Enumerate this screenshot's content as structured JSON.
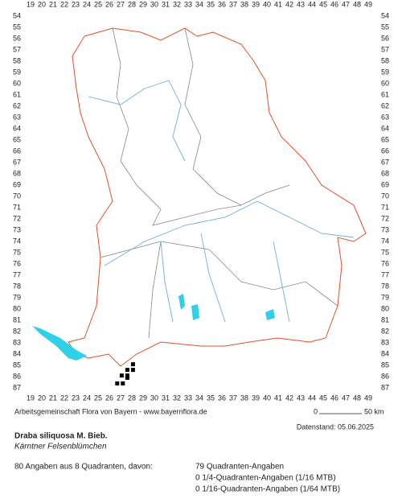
{
  "map": {
    "x_labels": [
      19,
      20,
      21,
      22,
      23,
      24,
      25,
      26,
      27,
      28,
      29,
      30,
      31,
      32,
      33,
      34,
      35,
      36,
      37,
      38,
      39,
      40,
      41,
      42,
      43,
      44,
      45,
      46,
      47,
      48,
      49
    ],
    "y_labels": [
      54,
      55,
      56,
      57,
      58,
      59,
      60,
      61,
      62,
      63,
      64,
      65,
      66,
      67,
      68,
      69,
      70,
      71,
      72,
      73,
      74,
      75,
      76,
      77,
      78,
      79,
      80,
      81,
      82,
      83,
      84,
      85,
      86,
      87
    ],
    "occurrences": [
      {
        "x": 28.1,
        "y": 84.9
      },
      {
        "x": 27.6,
        "y": 85.4
      },
      {
        "x": 28.1,
        "y": 85.4
      },
      {
        "x": 27.1,
        "y": 85.9
      },
      {
        "x": 27.6,
        "y": 85.9
      },
      {
        "x": 26.7,
        "y": 86.6
      },
      {
        "x": 27.2,
        "y": 86.6
      },
      {
        "x": 27.6,
        "y": 86.1
      }
    ]
  },
  "footer": {
    "credit": "Arbeitsgemeinschaft Flora von Bayern - www.bayernflora.de",
    "scale_start": "0",
    "scale_end": "50 km",
    "date": "Datenstand: 05.06.2025"
  },
  "species": {
    "name": "Draba siliquosa M. Bieb.",
    "common_name": "Kärntner Felsenblümchen"
  },
  "summary": {
    "total": "80 Angaben aus 8 Quadranten, davon:",
    "quadrant": "79 Quadranten-Angaben",
    "quarter": "0 1/4-Quadranten-Angaben (1/16 MTB)",
    "sixteenth": "0 1/16-Quadranten-Angaben (1/64 MTB)"
  }
}
